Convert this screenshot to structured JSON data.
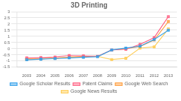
{
  "chart_data": {
    "type": "line",
    "title": "3D Printing",
    "x": [
      2003,
      2004,
      2005,
      2006,
      2007,
      2008,
      2009,
      2010,
      2011,
      2012,
      2013
    ],
    "series": [
      {
        "name": "Google Scholar Results",
        "values": [
          -0.9,
          -0.85,
          -0.8,
          -0.75,
          -0.7,
          -0.65,
          -0.1,
          0.05,
          0.2,
          0.75,
          1.5
        ]
      },
      {
        "name": "Patent Claims",
        "values": [
          -0.75,
          -0.72,
          -0.68,
          -0.55,
          -0.58,
          -0.62,
          -0.1,
          -0.05,
          0.35,
          0.9,
          2.6
        ]
      },
      {
        "name": "Google Web Search",
        "values": [
          -0.85,
          -0.82,
          -0.78,
          -0.7,
          -0.65,
          -0.62,
          -0.12,
          0.0,
          0.18,
          0.7,
          2.2
        ]
      },
      {
        "name": "Google News Results",
        "values": [
          -0.85,
          -0.82,
          -0.78,
          -0.7,
          -0.65,
          -0.62,
          -0.88,
          -0.78,
          0.05,
          0.15,
          1.6
        ]
      }
    ],
    "xlim": [
      2002.3,
      2013.6
    ],
    "xticks": [
      2003,
      2004,
      2005,
      2006,
      2007,
      2008,
      2009,
      2010,
      2011,
      2012,
      2013
    ],
    "ylim": [
      -1.5,
      3.0
    ],
    "yticks": [
      -1.5,
      -1.0,
      -0.5,
      0.0,
      0.5,
      1.0,
      1.5,
      2.0,
      2.5,
      3.0
    ],
    "grid": "y",
    "legend": "bottom",
    "marker": "square"
  }
}
